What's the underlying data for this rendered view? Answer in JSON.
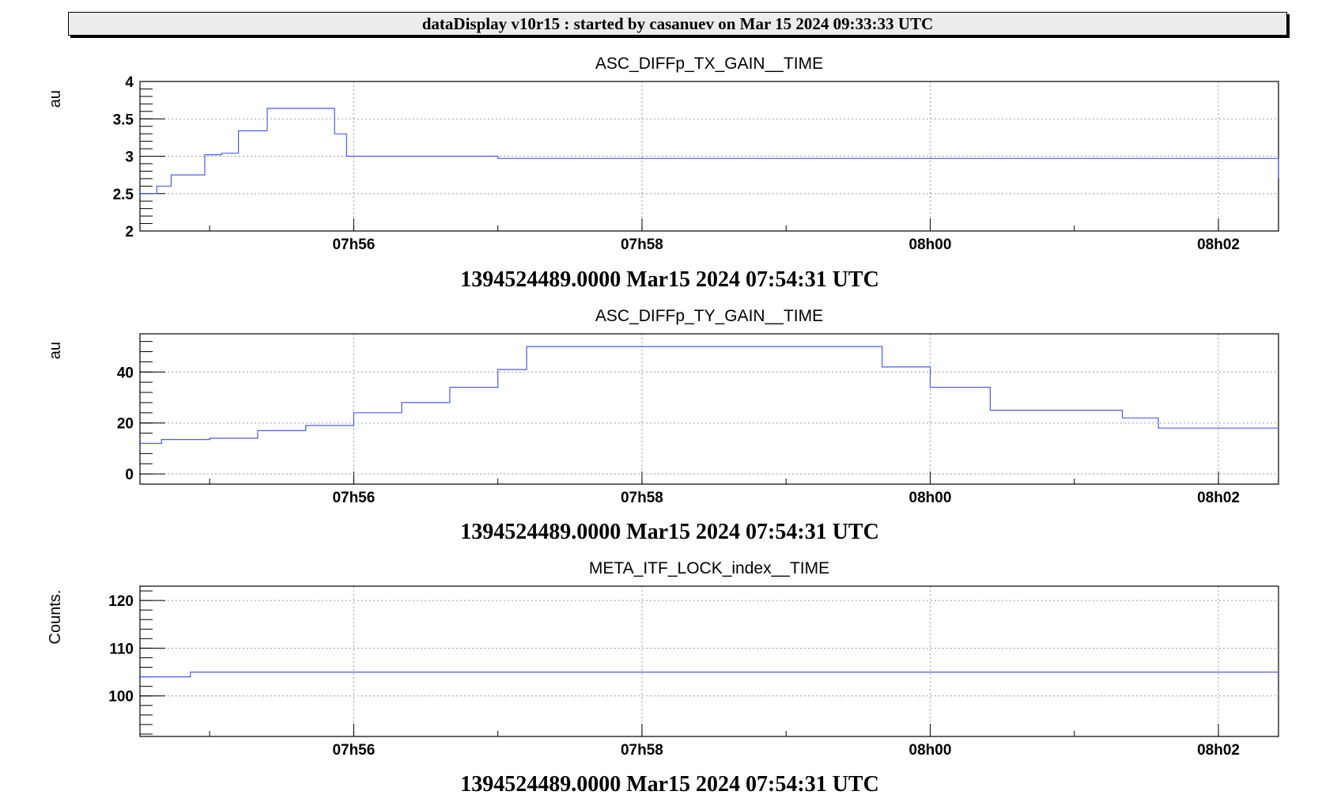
{
  "header": {
    "banner": "dataDisplay v10r15 : started by casanuev on Mar 15 2024 09:33:33 UTC"
  },
  "chart_data": [
    {
      "type": "line",
      "title": "ASC_DIFFp_TX_GAIN__TIME",
      "ylabel": "au",
      "xlabel": "1394524489.0000 Mar15 2024 07:54:31 UTC",
      "xlim": [
        "07:54:31",
        "08:02:25"
      ],
      "ylim": [
        2,
        4
      ],
      "yticks": [
        "2",
        "2.5",
        "3",
        "3.5",
        "4"
      ],
      "xticks": [
        "07h56",
        "07h58",
        "08h00",
        "08h02"
      ],
      "grid": true,
      "color": "#4f5bef",
      "series": [
        {
          "x": [
            "07:54:31",
            "07:54:38",
            "07:54:44",
            "07:54:50",
            "07:54:58",
            "07:55:05",
            "07:55:12",
            "07:55:18",
            "07:55:24",
            "07:55:39",
            "07:55:48",
            "07:55:52",
            "07:55:57",
            "07:57:00",
            "07:58:00",
            "07:59:00",
            "08:00:00",
            "08:01:00",
            "08:02:00",
            "08:02:20",
            "08:02:25"
          ],
          "y": [
            2.5,
            2.6,
            2.75,
            2.75,
            3.02,
            3.04,
            3.34,
            3.34,
            3.64,
            3.64,
            3.64,
            3.3,
            3.0,
            2.97,
            2.97,
            2.97,
            2.97,
            2.97,
            2.97,
            2.97,
            2.7
          ]
        }
      ]
    },
    {
      "type": "line",
      "title": "ASC_DIFFp_TY_GAIN__TIME",
      "ylabel": "au",
      "xlabel": "1394524489.0000 Mar15 2024 07:54:31 UTC",
      "xlim": [
        "07:54:31",
        "08:02:25"
      ],
      "ylim": [
        -4,
        55
      ],
      "yticks": [
        "0",
        "20",
        "40"
      ],
      "xticks": [
        "07h56",
        "07h58",
        "08h00",
        "08h02"
      ],
      "grid": true,
      "color": "#4f5bef",
      "series": [
        {
          "x": [
            "07:54:31",
            "07:54:40",
            "07:55:00",
            "07:55:20",
            "07:55:40",
            "07:56:00",
            "07:56:20",
            "07:56:40",
            "07:57:00",
            "07:57:12",
            "07:58:00",
            "07:59:00",
            "07:59:18",
            "07:59:40",
            "08:00:00",
            "08:00:25",
            "08:01:00",
            "08:01:10",
            "08:01:20",
            "08:01:35",
            "08:02:00",
            "08:02:25"
          ],
          "y": [
            12,
            13.5,
            14,
            17,
            19,
            24,
            28,
            34,
            41,
            50,
            50,
            50,
            50,
            42,
            34,
            25,
            25,
            25,
            22,
            18,
            18,
            18
          ]
        }
      ]
    },
    {
      "type": "line",
      "title": "META_ITF_LOCK_index__TIME",
      "ylabel": "Counts.",
      "xlabel": "1394524489.0000 Mar15 2024 07:54:31 UTC",
      "xlim": [
        "07:54:31",
        "08:02:25"
      ],
      "ylim": [
        91.5,
        123
      ],
      "yticks": [
        "100",
        "110",
        "120"
      ],
      "xticks": [
        "07h56",
        "07h58",
        "08h00",
        "08h02"
      ],
      "grid": true,
      "color": "#4f5bef",
      "series": [
        {
          "x": [
            "07:54:31",
            "07:54:52",
            "07:54:52",
            "08:02:25"
          ],
          "y": [
            104,
            104,
            105,
            105
          ]
        }
      ]
    }
  ]
}
